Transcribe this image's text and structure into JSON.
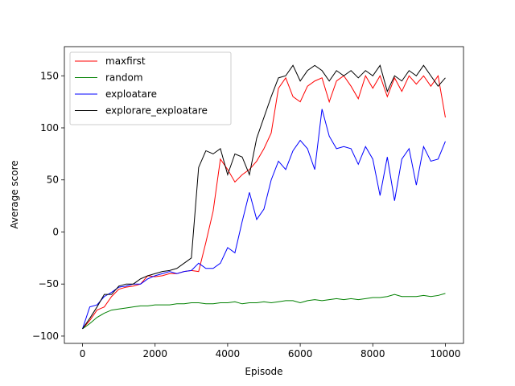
{
  "chart_data": {
    "type": "line",
    "xlabel": "Episode",
    "ylabel": "Average score",
    "x": [
      0,
      200,
      400,
      600,
      800,
      1000,
      1200,
      1400,
      1600,
      1800,
      2000,
      2200,
      2400,
      2600,
      2800,
      3000,
      3200,
      3400,
      3600,
      3800,
      4000,
      4200,
      4400,
      4600,
      4800,
      5000,
      5200,
      5400,
      5600,
      5800,
      6000,
      6200,
      6400,
      6600,
      6800,
      7000,
      7200,
      7400,
      7600,
      7800,
      8000,
      8200,
      8400,
      8600,
      8800,
      9000,
      9200,
      9400,
      9600,
      9800,
      10000
    ],
    "series": [
      {
        "name": "maxfirst",
        "color": "#ff0000",
        "values": [
          -93,
          -85,
          -75,
          -72,
          -62,
          -55,
          -53,
          -52,
          -50,
          -42,
          -43,
          -42,
          -40,
          -40,
          -38,
          -37,
          -38,
          -10,
          20,
          70,
          60,
          48,
          55,
          60,
          68,
          80,
          95,
          138,
          148,
          130,
          125,
          140,
          145,
          148,
          125,
          145,
          150,
          140,
          128,
          150,
          138,
          150,
          130,
          148,
          135,
          150,
          142,
          150,
          140,
          150,
          110
        ]
      },
      {
        "name": "random",
        "color": "#008000",
        "values": [
          -93,
          -88,
          -82,
          -78,
          -75,
          -74,
          -73,
          -72,
          -71,
          -71,
          -70,
          -70,
          -70,
          -69,
          -69,
          -68,
          -68,
          -69,
          -69,
          -68,
          -68,
          -67,
          -69,
          -68,
          -68,
          -67,
          -68,
          -67,
          -66,
          -66,
          -68,
          -66,
          -65,
          -66,
          -65,
          -64,
          -65,
          -64,
          -65,
          -64,
          -63,
          -63,
          -62,
          -60,
          -62,
          -62,
          -62,
          -61,
          -62,
          -61,
          -59
        ]
      },
      {
        "name": "exploatare",
        "color": "#0000ff",
        "values": [
          -93,
          -72,
          -70,
          -62,
          -58,
          -53,
          -52,
          -50,
          -50,
          -45,
          -42,
          -40,
          -38,
          -40,
          -38,
          -37,
          -30,
          -35,
          -35,
          -30,
          -15,
          -20,
          10,
          38,
          12,
          22,
          50,
          68,
          60,
          78,
          88,
          80,
          60,
          118,
          92,
          80,
          82,
          80,
          65,
          82,
          70,
          35,
          72,
          30,
          70,
          80,
          45,
          82,
          68,
          70,
          87
        ]
      },
      {
        "name": "explorare_exploatare",
        "color": "#000000",
        "values": [
          -93,
          -83,
          -72,
          -60,
          -60,
          -52,
          -50,
          -50,
          -45,
          -42,
          -40,
          -38,
          -37,
          -35,
          -30,
          -25,
          62,
          78,
          75,
          80,
          55,
          75,
          72,
          55,
          90,
          110,
          130,
          148,
          150,
          160,
          145,
          155,
          160,
          155,
          145,
          155,
          150,
          155,
          148,
          155,
          150,
          160,
          135,
          150,
          145,
          155,
          150,
          160,
          150,
          140,
          148
        ]
      }
    ],
    "xlim": [
      -500,
      10500
    ],
    "xticks": [
      0,
      2000,
      4000,
      6000,
      8000,
      10000
    ],
    "ylim": [
      -107,
      178
    ],
    "yticks": [
      {
        "value": -100,
        "label": "−100"
      },
      {
        "value": -50,
        "label": "−50"
      },
      0,
      50,
      100,
      150
    ],
    "legend": "upper left",
    "grid": false
  }
}
